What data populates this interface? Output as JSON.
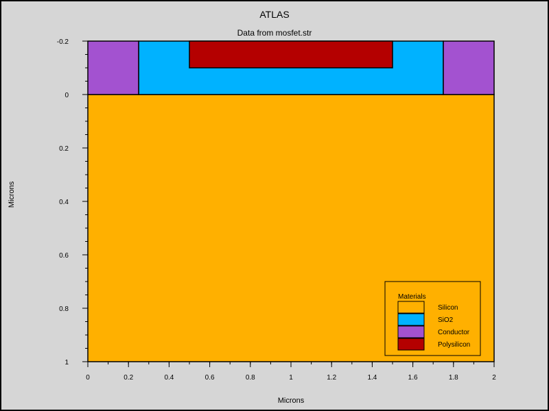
{
  "window": {
    "title": "ATLAS",
    "subtitle": "Data from mosfet.str"
  },
  "axes": {
    "xlabel": "Microns",
    "ylabel": "Microns",
    "xlim": [
      0,
      2
    ],
    "ylim": [
      -0.2,
      1
    ],
    "y_inverted": true,
    "x_ticks": [
      {
        "value": 0,
        "label": "0"
      },
      {
        "value": 0.2,
        "label": "0.2"
      },
      {
        "value": 0.4,
        "label": "0.4"
      },
      {
        "value": 0.6,
        "label": "0.6"
      },
      {
        "value": 0.8,
        "label": "0.8"
      },
      {
        "value": 1,
        "label": "1"
      },
      {
        "value": 1.2,
        "label": "1.2"
      },
      {
        "value": 1.4,
        "label": "1.4"
      },
      {
        "value": 1.6,
        "label": "1.6"
      },
      {
        "value": 1.8,
        "label": "1.8"
      },
      {
        "value": 2,
        "label": "2"
      }
    ],
    "y_ticks": [
      {
        "value": -0.2,
        "label": "-0.2"
      },
      {
        "value": 0,
        "label": "0"
      },
      {
        "value": 0.2,
        "label": "0.2"
      },
      {
        "value": 0.4,
        "label": "0.4"
      },
      {
        "value": 0.6,
        "label": "0.6"
      },
      {
        "value": 0.8,
        "label": "0.8"
      },
      {
        "value": 1,
        "label": "1"
      }
    ],
    "x_minor_step": 0.1,
    "y_minor_step": 0.05
  },
  "regions": [
    {
      "id": "silicon-substrate",
      "material": "Silicon",
      "x": [
        0,
        2
      ],
      "y": [
        0,
        1
      ]
    },
    {
      "id": "sio2-oxide",
      "material": "SiO2",
      "x": [
        0.25,
        1.75
      ],
      "y": [
        -0.2,
        0
      ]
    },
    {
      "id": "conductor-source",
      "material": "Conductor",
      "x": [
        0,
        0.25
      ],
      "y": [
        -0.2,
        0
      ]
    },
    {
      "id": "conductor-drain",
      "material": "Conductor",
      "x": [
        1.75,
        2
      ],
      "y": [
        -0.2,
        0
      ]
    },
    {
      "id": "polysilicon-gate",
      "material": "Polysilicon",
      "x": [
        0.5,
        1.5
      ],
      "y": [
        -0.2,
        -0.1
      ]
    }
  ],
  "legend": {
    "title": "Materials",
    "placement": "bottom-right",
    "items": [
      {
        "label": "Silicon",
        "material": "Silicon"
      },
      {
        "label": "SiO2",
        "material": "SiO2"
      },
      {
        "label": "Conductor",
        "material": "Conductor"
      },
      {
        "label": "Polysilicon",
        "material": "Polysilicon"
      }
    ]
  },
  "colors": {
    "Silicon": "#ffb000",
    "SiO2": "#00b2ff",
    "Conductor": "#a352d0",
    "Polysilicon": "#b40000",
    "background": "#d6d6d6",
    "plot_empty": "#ffffff"
  }
}
